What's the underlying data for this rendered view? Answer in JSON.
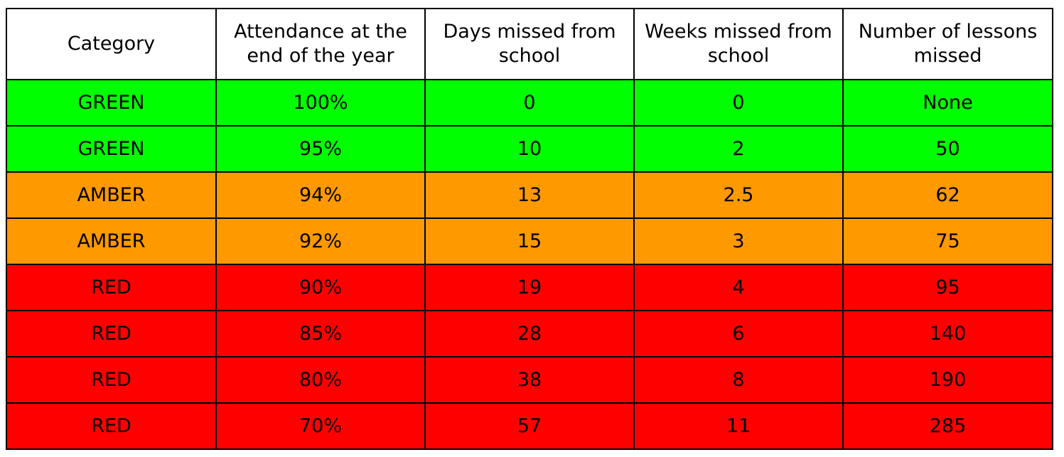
{
  "colors": {
    "GREEN": "#00ff00",
    "AMBER": "#ff9900",
    "RED": "#ff0000",
    "header_bg": "#ffffff",
    "border": "#000000"
  },
  "table": {
    "headers": [
      "Category",
      "Attendance at the end of the year",
      "Days missed from school",
      "Weeks missed from school",
      "Number of lessons missed"
    ],
    "rows": [
      [
        "GREEN",
        "100%",
        "0",
        "0",
        "None"
      ],
      [
        "GREEN",
        "95%",
        "10",
        "2",
        "50"
      ],
      [
        "AMBER",
        "94%",
        "13",
        "2.5",
        "62"
      ],
      [
        "AMBER",
        "92%",
        "15",
        "3",
        "75"
      ],
      [
        "RED",
        "90%",
        "19",
        "4",
        "95"
      ],
      [
        "RED",
        "85%",
        "28",
        "6",
        "140"
      ],
      [
        "RED",
        "80%",
        "38",
        "8",
        "190"
      ],
      [
        "RED",
        "70%",
        "57",
        "11",
        "285"
      ]
    ]
  }
}
